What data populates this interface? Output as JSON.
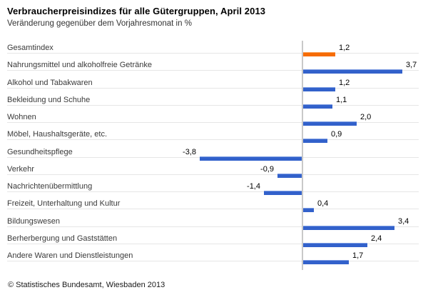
{
  "chart_data": {
    "type": "bar",
    "orientation": "horizontal",
    "title": "Verbraucherpreisindizes für alle Gütergruppen, April 2013",
    "subtitle": "Veränderung gegenüber dem Vorjahresmonat in %",
    "unit": "%",
    "categories": [
      "Gesamtindex",
      "Nahrungsmittel und alkoholfreie Getränke",
      "Alkohol und Tabakwaren",
      "Bekleidung und Schuhe",
      "Wohnen",
      "Möbel, Haushaltsgeräte, etc.",
      "Gesundheitspflege",
      "Verkehr",
      "Nachrichtenübermittlung",
      "Freizeit, Unterhaltung und Kultur",
      "Bildungswesen",
      "Berherbergung und Gaststätten",
      "Andere Waren und Dienstleistungen"
    ],
    "values": [
      1.2,
      3.7,
      1.2,
      1.1,
      2.0,
      0.9,
      -3.8,
      -0.9,
      -1.4,
      0.4,
      3.4,
      2.4,
      1.7
    ],
    "value_labels": [
      "1,2",
      "3,7",
      "1,2",
      "1,1",
      "2,0",
      "0,9",
      "-3,8",
      "-0,9",
      "-1,4",
      "0,4",
      "3,4",
      "2,4",
      "1,7"
    ],
    "highlight_index": 0,
    "xlim": [
      -11.0,
      4.3
    ],
    "grid": "horizontal-row-rules",
    "zero_axis": true,
    "legend": "none",
    "colors": {
      "bar": "#3261cb",
      "bar_highlight": "#f66c05",
      "row_rule": "#e6e6e6",
      "zero_axis": "#c9c9c9"
    }
  },
  "footer": {
    "source": "© Statistisches Bundesamt, Wiesbaden 2013"
  }
}
